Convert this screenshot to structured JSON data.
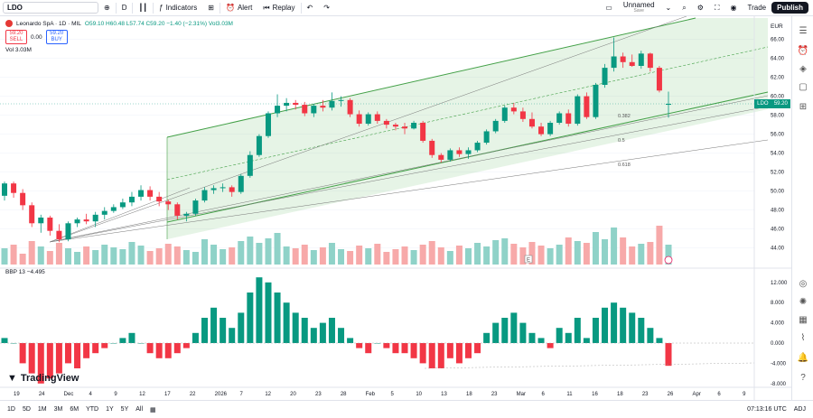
{
  "topbar": {
    "symbol": "LDO",
    "interval": "D",
    "indicators": "Indicators",
    "alert": "Alert",
    "replay": "Replay",
    "layout_name": "Unnamed",
    "layout_state": "Save",
    "trade": "Trade",
    "publish": "Publish"
  },
  "legend": {
    "title": "Leonardo SpA · 1D · MIL",
    "ohlc": "O59.10 H60.48 L57.74 C59.20 −1.40 (−2.31%) Vol3.03M",
    "sell_price": "59.20",
    "sell_label": "SELL",
    "spread": "0.00",
    "buy_price": "59.20",
    "buy_label": "BUY",
    "vol": "Vol  3.03M",
    "bbp": "BBP 13  −4.495"
  },
  "price_axis": {
    "currency": "EUR",
    "ticks": [
      "66.00",
      "64.00",
      "62.00",
      "60.00",
      "58.00",
      "56.00",
      "54.00",
      "52.00",
      "50.00",
      "48.00",
      "46.00",
      "44.00"
    ],
    "last_symbol": "LDO",
    "last_price": "59.20"
  },
  "bbp_axis": {
    "ticks": [
      "12.000",
      "8.000",
      "4.000",
      "0.000",
      "-4.000",
      "-8.000"
    ]
  },
  "fib_labels": [
    "0.382",
    "0.5",
    "0.618"
  ],
  "time_axis": [
    "19",
    "24",
    "Dec",
    "4",
    "9",
    "12",
    "17",
    "22",
    "2026",
    "7",
    "12",
    "20",
    "23",
    "28",
    "Feb",
    "5",
    "10",
    "13",
    "18",
    "23",
    "Mar",
    "6",
    "11",
    "16",
    "18",
    "23",
    "26",
    "Apr",
    "6",
    "9"
  ],
  "bottombar": {
    "ranges": [
      "1D",
      "5D",
      "1M",
      "3M",
      "6M",
      "YTD",
      "1Y",
      "5Y",
      "All"
    ],
    "clock": "07:13:16 UTC",
    "adj": "ADJ"
  },
  "brand": "TradingView",
  "colors": {
    "up": "#089981",
    "down": "#f23645",
    "channel": "#43a047"
  },
  "chart_data": {
    "type": "candlestick",
    "symbol": "Leonardo SpA",
    "candles": [
      [
        49.5,
        51.0,
        49.0,
        50.8
      ],
      [
        50.8,
        51.0,
        49.3,
        49.8
      ],
      [
        49.8,
        50.2,
        48.0,
        48.5
      ],
      [
        48.5,
        48.8,
        46.2,
        46.6
      ],
      [
        46.6,
        47.5,
        45.6,
        47.2
      ],
      [
        47.2,
        47.4,
        45.3,
        45.8
      ],
      [
        45.8,
        46.5,
        44.6,
        44.9
      ],
      [
        44.9,
        46.8,
        44.7,
        46.6
      ],
      [
        46.6,
        47.2,
        46.2,
        47.0
      ],
      [
        47.0,
        47.6,
        46.5,
        46.8
      ],
      [
        46.8,
        47.8,
        46.2,
        47.5
      ],
      [
        47.5,
        48.3,
        47.0,
        47.9
      ],
      [
        47.9,
        48.6,
        47.7,
        48.3
      ],
      [
        48.3,
        49.2,
        48.1,
        48.8
      ],
      [
        48.8,
        49.9,
        48.4,
        49.4
      ],
      [
        49.4,
        50.6,
        49.0,
        50.1
      ],
      [
        50.1,
        50.5,
        49.0,
        49.4
      ],
      [
        49.4,
        49.9,
        48.4,
        48.9
      ],
      [
        48.9,
        49.1,
        48.0,
        48.6
      ],
      [
        48.6,
        48.8,
        47.0,
        47.4
      ],
      [
        47.4,
        47.8,
        46.8,
        47.6
      ],
      [
        47.6,
        49.2,
        47.4,
        49.0
      ],
      [
        49.0,
        50.4,
        48.8,
        50.1
      ],
      [
        50.1,
        50.6,
        49.7,
        50.3
      ],
      [
        50.3,
        50.8,
        49.9,
        50.4
      ],
      [
        50.4,
        50.6,
        49.4,
        49.9
      ],
      [
        49.9,
        51.8,
        49.7,
        51.6
      ],
      [
        51.6,
        54.2,
        51.4,
        53.8
      ],
      [
        53.8,
        56.0,
        53.6,
        55.8
      ],
      [
        55.8,
        58.4,
        55.6,
        58.2
      ],
      [
        58.2,
        60.2,
        57.8,
        59.0
      ],
      [
        59.0,
        59.8,
        58.4,
        59.3
      ],
      [
        59.3,
        59.6,
        58.6,
        59.1
      ],
      [
        59.1,
        59.4,
        57.9,
        58.2
      ],
      [
        58.2,
        59.2,
        57.8,
        59.0
      ],
      [
        59.0,
        59.6,
        58.4,
        58.8
      ],
      [
        58.8,
        60.4,
        58.5,
        59.5
      ],
      [
        59.5,
        60.0,
        58.9,
        59.6
      ],
      [
        59.6,
        59.8,
        57.8,
        58.1
      ],
      [
        58.1,
        58.5,
        56.8,
        57.1
      ],
      [
        57.1,
        58.3,
        56.9,
        58.1
      ],
      [
        58.1,
        58.4,
        57.1,
        57.4
      ],
      [
        57.4,
        57.6,
        56.6,
        57.0
      ],
      [
        57.0,
        57.2,
        56.4,
        56.8
      ],
      [
        56.8,
        57.2,
        56.0,
        56.6
      ],
      [
        56.6,
        57.4,
        56.5,
        57.2
      ],
      [
        57.2,
        57.4,
        55.1,
        55.3
      ],
      [
        55.3,
        55.5,
        53.5,
        53.8
      ],
      [
        53.8,
        54.0,
        53.0,
        53.3
      ],
      [
        53.3,
        54.5,
        53.1,
        54.3
      ],
      [
        54.3,
        54.6,
        53.6,
        53.9
      ],
      [
        53.9,
        54.6,
        53.4,
        54.3
      ],
      [
        54.3,
        55.3,
        54.1,
        55.1
      ],
      [
        55.1,
        56.5,
        54.9,
        56.3
      ],
      [
        56.3,
        57.6,
        56.1,
        57.4
      ],
      [
        57.4,
        59.0,
        57.2,
        58.8
      ],
      [
        58.8,
        59.3,
        58.1,
        58.4
      ],
      [
        58.4,
        58.8,
        57.3,
        57.6
      ],
      [
        57.6,
        58.3,
        56.6,
        56.8
      ],
      [
        56.8,
        57.2,
        55.8,
        56.0
      ],
      [
        56.0,
        57.4,
        55.8,
        57.2
      ],
      [
        57.2,
        58.4,
        57.0,
        58.2
      ],
      [
        58.2,
        58.6,
        56.8,
        57.1
      ],
      [
        57.1,
        60.2,
        56.9,
        60.0
      ],
      [
        60.0,
        60.4,
        57.6,
        57.8
      ],
      [
        57.8,
        61.4,
        57.6,
        61.2
      ],
      [
        61.2,
        63.4,
        60.9,
        63.0
      ],
      [
        63.0,
        66.2,
        62.6,
        64.2
      ],
      [
        64.2,
        64.6,
        63.0,
        63.6
      ],
      [
        63.6,
        64.4,
        63.1,
        63.2
      ],
      [
        63.2,
        64.8,
        62.9,
        64.5
      ],
      [
        64.5,
        64.6,
        62.6,
        63.0
      ],
      [
        63.0,
        63.2,
        60.4,
        60.6
      ],
      [
        59.1,
        60.48,
        57.74,
        59.2
      ]
    ],
    "volume_shown": "3.03M",
    "bbp_last": -4.495
  }
}
